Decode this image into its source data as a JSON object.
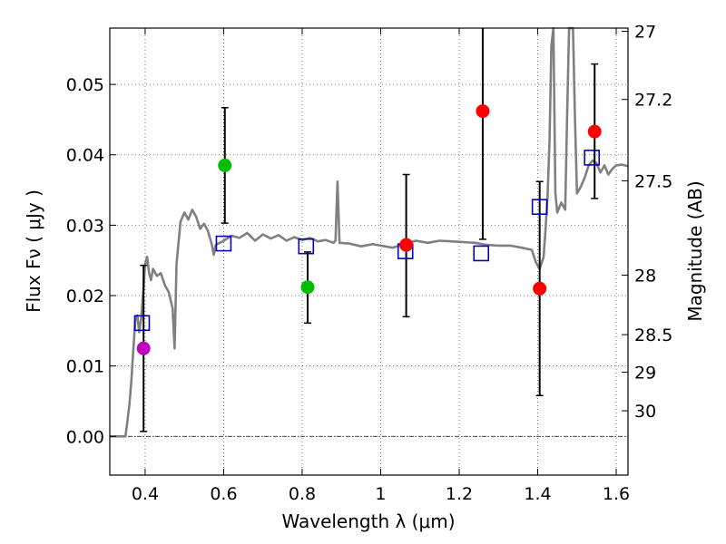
{
  "chart_data": {
    "type": "scatter",
    "xlabel": "Wavelength  λ (μm)",
    "ylabel": "Flux  Fν  ( μJy )",
    "y2label": "Magnitude (AB)",
    "xlim": [
      0.31,
      1.63
    ],
    "ylim": [
      -0.0055,
      0.058
    ],
    "grid": true,
    "x_ticks": [
      {
        "value": 0.4,
        "label": "0.4"
      },
      {
        "value": 0.6,
        "label": "0.6"
      },
      {
        "value": 0.8,
        "label": "0.8"
      },
      {
        "value": 1.0,
        "label": "1"
      },
      {
        "value": 1.2,
        "label": "1.2"
      },
      {
        "value": 1.4,
        "label": "1.4"
      },
      {
        "value": 1.6,
        "label": "1.6"
      }
    ],
    "y_ticks": [
      {
        "value": 0.0,
        "label": "0.00"
      },
      {
        "value": 0.01,
        "label": "0.01"
      },
      {
        "value": 0.02,
        "label": "0.02"
      },
      {
        "value": 0.03,
        "label": "0.03"
      },
      {
        "value": 0.04,
        "label": "0.04"
      },
      {
        "value": 0.05,
        "label": "0.05"
      }
    ],
    "y2_ticks": [
      {
        "value": 27,
        "label": "27"
      },
      {
        "value": 27.2,
        "label": "27.2"
      },
      {
        "value": 27.5,
        "label": "27.5"
      },
      {
        "value": 28,
        "label": "28"
      },
      {
        "value": 28.5,
        "label": "28.5"
      },
      {
        "value": 29,
        "label": "29"
      },
      {
        "value": 30,
        "label": "30"
      }
    ],
    "photometry": [
      {
        "x": 0.396,
        "y": 0.0125,
        "color": "#bf00bf",
        "err_low": 0.0007,
        "err_high": 0.0243
      },
      {
        "x": 0.603,
        "y": 0.0385,
        "color": "#00bf00",
        "err_low": 0.0303,
        "err_high": 0.0467
      },
      {
        "x": 0.814,
        "y": 0.0212,
        "color": "#00bf00",
        "err_low": 0.0161,
        "err_high": 0.0262
      },
      {
        "x": 1.065,
        "y": 0.0272,
        "color": "#ff0000",
        "err_low": 0.017,
        "err_high": 0.0372
      },
      {
        "x": 1.26,
        "y": 0.0462,
        "color": "#ff0000",
        "err_low": 0.028,
        "err_high": 0.0585
      },
      {
        "x": 1.405,
        "y": 0.021,
        "color": "#ff0000",
        "err_low": 0.0058,
        "err_high": 0.0362
      },
      {
        "x": 1.545,
        "y": 0.0433,
        "color": "#ff0000",
        "err_low": 0.0338,
        "err_high": 0.0529
      }
    ],
    "model_points": [
      {
        "x": 0.392,
        "y": 0.0161
      },
      {
        "x": 0.6,
        "y": 0.0274
      },
      {
        "x": 0.81,
        "y": 0.027
      },
      {
        "x": 1.063,
        "y": 0.0263
      },
      {
        "x": 1.256,
        "y": 0.026
      },
      {
        "x": 1.405,
        "y": 0.0326
      },
      {
        "x": 1.538,
        "y": 0.0396
      }
    ],
    "sed_curve": [
      [
        0.31,
        0.0
      ],
      [
        0.35,
        0.0
      ],
      [
        0.36,
        0.0045
      ],
      [
        0.365,
        0.008
      ],
      [
        0.37,
        0.0125
      ],
      [
        0.375,
        0.0165
      ],
      [
        0.38,
        0.0172
      ],
      [
        0.385,
        0.0148
      ],
      [
        0.39,
        0.0168
      ],
      [
        0.395,
        0.0205
      ],
      [
        0.4,
        0.0245
      ],
      [
        0.405,
        0.0255
      ],
      [
        0.41,
        0.0232
      ],
      [
        0.415,
        0.0222
      ],
      [
        0.42,
        0.0238
      ],
      [
        0.43,
        0.0228
      ],
      [
        0.44,
        0.0232
      ],
      [
        0.45,
        0.0215
      ],
      [
        0.46,
        0.0205
      ],
      [
        0.47,
        0.0182
      ],
      [
        0.475,
        0.0125
      ],
      [
        0.48,
        0.0245
      ],
      [
        0.49,
        0.0305
      ],
      [
        0.5,
        0.0318
      ],
      [
        0.51,
        0.0308
      ],
      [
        0.52,
        0.0322
      ],
      [
        0.53,
        0.0312
      ],
      [
        0.54,
        0.0295
      ],
      [
        0.55,
        0.0302
      ],
      [
        0.56,
        0.0292
      ],
      [
        0.57,
        0.0272
      ],
      [
        0.575,
        0.0258
      ],
      [
        0.58,
        0.0272
      ],
      [
        0.6,
        0.0278
      ],
      [
        0.62,
        0.0285
      ],
      [
        0.64,
        0.0282
      ],
      [
        0.66,
        0.0289
      ],
      [
        0.68,
        0.0278
      ],
      [
        0.7,
        0.0287
      ],
      [
        0.72,
        0.0281
      ],
      [
        0.74,
        0.0286
      ],
      [
        0.76,
        0.0278
      ],
      [
        0.78,
        0.0283
      ],
      [
        0.8,
        0.0279
      ],
      [
        0.82,
        0.0282
      ],
      [
        0.84,
        0.0277
      ],
      [
        0.86,
        0.0279
      ],
      [
        0.88,
        0.0275
      ],
      [
        0.885,
        0.0278
      ],
      [
        0.89,
        0.0362
      ],
      [
        0.895,
        0.0275
      ],
      [
        0.92,
        0.0274
      ],
      [
        0.95,
        0.027
      ],
      [
        0.98,
        0.0273
      ],
      [
        1.0,
        0.0271
      ],
      [
        1.03,
        0.0268
      ],
      [
        1.06,
        0.0273
      ],
      [
        1.09,
        0.0278
      ],
      [
        1.12,
        0.0275
      ],
      [
        1.15,
        0.0278
      ],
      [
        1.18,
        0.0277
      ],
      [
        1.21,
        0.0276
      ],
      [
        1.24,
        0.0275
      ],
      [
        1.27,
        0.0272
      ],
      [
        1.3,
        0.0271
      ],
      [
        1.33,
        0.0271
      ],
      [
        1.36,
        0.0268
      ],
      [
        1.385,
        0.0265
      ],
      [
        1.395,
        0.0248
      ],
      [
        1.405,
        0.0238
      ],
      [
        1.415,
        0.0255
      ],
      [
        1.42,
        0.0295
      ],
      [
        1.425,
        0.034
      ],
      [
        1.43,
        0.0418
      ],
      [
        1.435,
        0.0555
      ],
      [
        1.44,
        0.058
      ],
      [
        1.445,
        0.0345
      ],
      [
        1.45,
        0.0318
      ],
      [
        1.46,
        0.0332
      ],
      [
        1.47,
        0.0322
      ],
      [
        1.475,
        0.046
      ],
      [
        1.48,
        0.058
      ],
      [
        1.49,
        0.058
      ],
      [
        1.495,
        0.045
      ],
      [
        1.5,
        0.0345
      ],
      [
        1.51,
        0.0355
      ],
      [
        1.52,
        0.0368
      ],
      [
        1.53,
        0.0385
      ],
      [
        1.54,
        0.0392
      ],
      [
        1.55,
        0.0388
      ],
      [
        1.56,
        0.0375
      ],
      [
        1.57,
        0.0385
      ],
      [
        1.58,
        0.0372
      ],
      [
        1.59,
        0.038
      ],
      [
        1.6,
        0.0385
      ],
      [
        1.615,
        0.0386
      ],
      [
        1.63,
        0.0384
      ]
    ]
  }
}
